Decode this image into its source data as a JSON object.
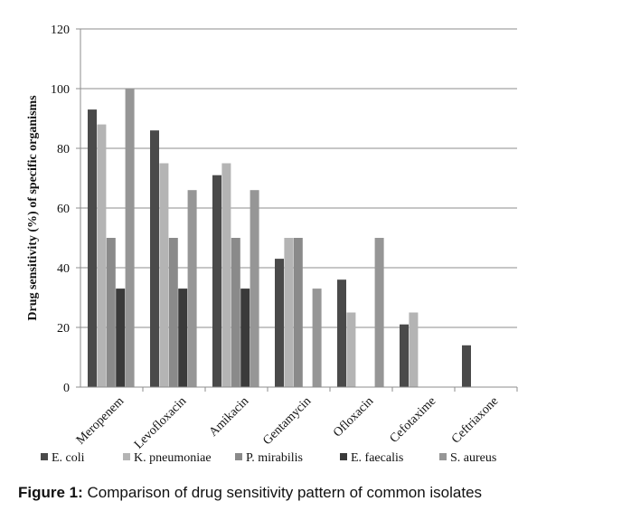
{
  "caption": {
    "label": "Figure 1:",
    "text": " Comparison of drug sensitivity pattern of common isolates"
  },
  "chart_data": {
    "type": "bar",
    "title": "",
    "xlabel": "",
    "ylabel": "Drug sensitivity (%) of specific organisms",
    "ylim": [
      0,
      120
    ],
    "yticks": [
      0,
      20,
      40,
      60,
      80,
      100,
      120
    ],
    "grid": "horizontal",
    "legend_position": "bottom",
    "categories": [
      "Meropenem",
      "Levofloxacin",
      "Amikacin",
      "Gentamycin",
      "Ofloxacin",
      "Cefotaxime",
      "Ceftriaxone"
    ],
    "series": [
      {
        "name": "E. coli",
        "color": "#4a4a4a",
        "values": [
          93,
          86,
          71,
          43,
          36,
          21,
          14
        ]
      },
      {
        "name": "K. pneumoniae",
        "color": "#b4b4b4",
        "values": [
          88,
          75,
          75,
          50,
          25,
          25,
          0
        ]
      },
      {
        "name": "P. mirabilis",
        "color": "#8a8a8a",
        "values": [
          50,
          50,
          50,
          50,
          0,
          0,
          0
        ]
      },
      {
        "name": "E. faecalis",
        "color": "#3a3a3a",
        "values": [
          33,
          33,
          33,
          0,
          0,
          0,
          0
        ]
      },
      {
        "name": "S. aureus",
        "color": "#969696",
        "values": [
          100,
          66,
          66,
          33,
          50,
          0,
          0
        ]
      }
    ]
  }
}
